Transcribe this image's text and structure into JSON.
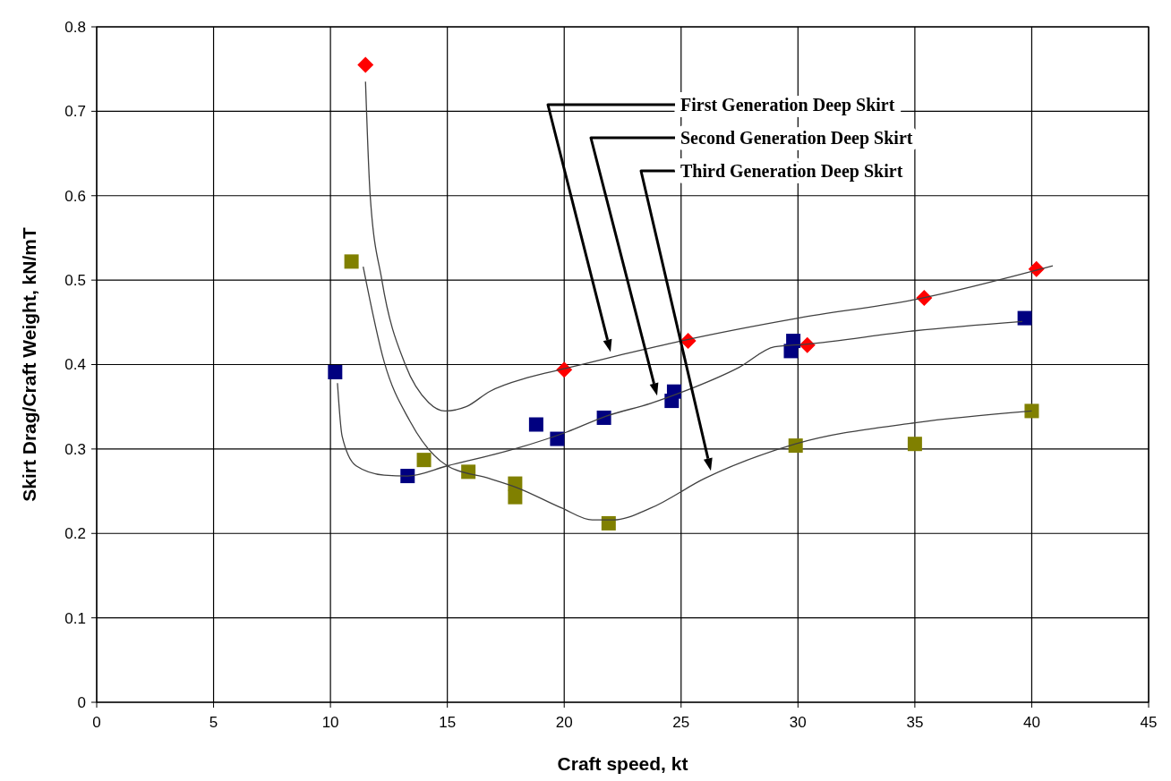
{
  "chart_data": {
    "type": "scatter",
    "xlabel": "Craft speed, kt",
    "ylabel": "Skirt Drag/Craft Weight, kN/mT",
    "xlim": [
      0,
      45
    ],
    "xticks": [
      0,
      5,
      10,
      15,
      20,
      25,
      30,
      35,
      40,
      45
    ],
    "ylim": [
      0,
      0.8
    ],
    "yticks": [
      0,
      0.1,
      0.2,
      0.3,
      0.4,
      0.5,
      0.6,
      0.7,
      0.8
    ],
    "grid": true,
    "series": [
      {
        "type": "line",
        "color": "#404040",
        "marker": "none",
        "x": [
          11.5,
          11.7,
          12.2,
          13.2,
          14.2,
          14.9,
          15.8,
          16.8,
          18.5,
          20,
          22.5,
          25,
          30,
          35,
          40.9
        ],
        "values": [
          0.735,
          0.6,
          0.5,
          0.4,
          0.355,
          0.345,
          0.35,
          0.368,
          0.385,
          0.395,
          0.412,
          0.428,
          0.455,
          0.477,
          0.517
        ]
      },
      {
        "type": "line",
        "color": "#404040",
        "marker": "none",
        "x": [
          10.3,
          10.5,
          11.1,
          12.3,
          13.3,
          15,
          18,
          20.1,
          21.8,
          23.7,
          25.1,
          27.5,
          29,
          30.3,
          35,
          39.6
        ],
        "values": [
          0.378,
          0.315,
          0.28,
          0.269,
          0.268,
          0.28,
          0.301,
          0.32,
          0.339,
          0.354,
          0.368,
          0.397,
          0.421,
          0.424,
          0.44,
          0.451
        ]
      },
      {
        "type": "line",
        "color": "#404040",
        "marker": "none",
        "x": [
          11.4,
          12.3,
          13.4,
          15,
          16.8,
          18,
          19.9,
          21.2,
          22.1,
          23.7,
          26,
          29.9,
          35,
          40
        ],
        "values": [
          0.516,
          0.403,
          0.333,
          0.28,
          0.265,
          0.254,
          0.23,
          0.216,
          0.216,
          0.23,
          0.265,
          0.306,
          0.331,
          0.345
        ]
      },
      {
        "color": "#ff0000",
        "marker": "diamond",
        "x": [
          11.5,
          20,
          25.3,
          30.4,
          35.4,
          40.2
        ],
        "values": [
          0.755,
          0.394,
          0.428,
          0.423,
          0.479,
          0.513
        ]
      },
      {
        "color": "#000080",
        "marker": "square",
        "x": [
          10.2,
          13.3,
          18.8,
          19.7,
          21.7,
          24.6,
          24.7,
          29.7,
          29.8,
          39.7
        ],
        "values": [
          0.391,
          0.268,
          0.329,
          0.312,
          0.337,
          0.357,
          0.368,
          0.416,
          0.428,
          0.455
        ]
      },
      {
        "color": "#808000",
        "marker": "square",
        "x": [
          10.9,
          14.0,
          15.9,
          17.9,
          17.9,
          21.9,
          29.9,
          35.0,
          40.0
        ],
        "values": [
          0.522,
          0.287,
          0.273,
          0.259,
          0.243,
          0.212,
          0.304,
          0.306,
          0.345
        ]
      }
    ],
    "annotations": [
      "First Generation Deep Skirt",
      "Second Generation Deep Skirt",
      "Third Generation Deep Skirt"
    ]
  }
}
